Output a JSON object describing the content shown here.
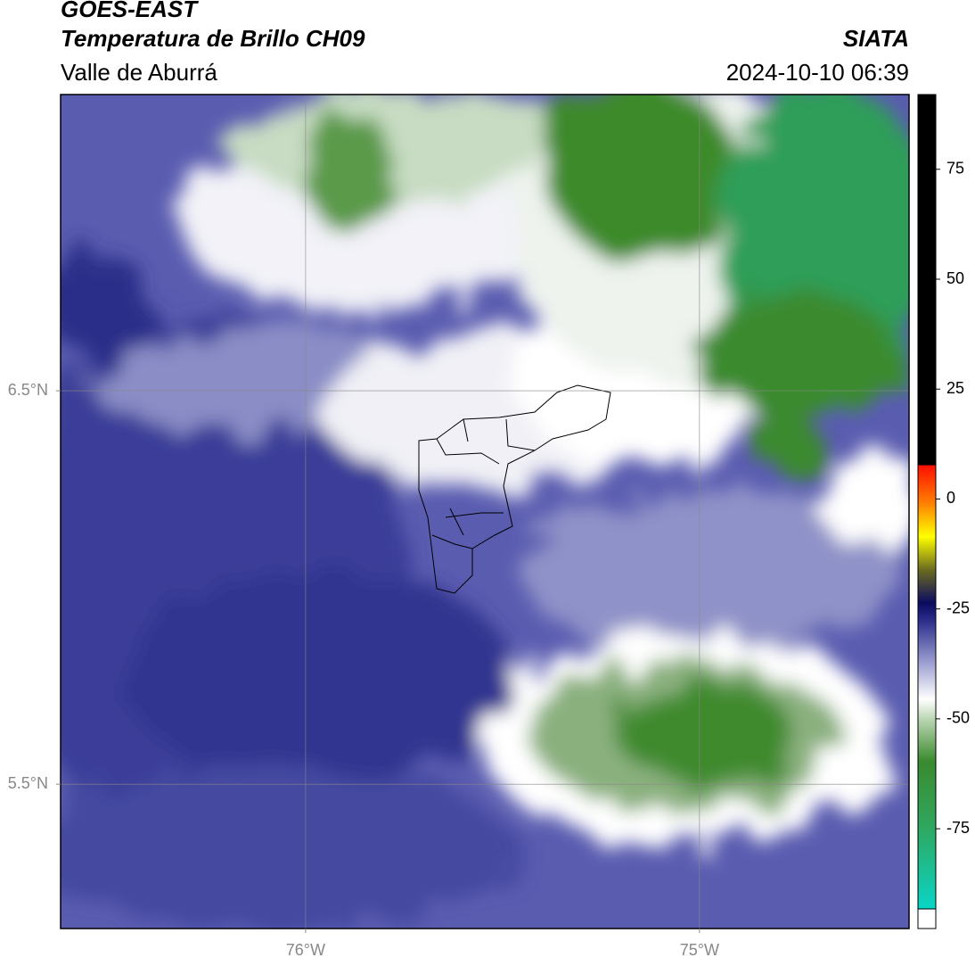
{
  "header": {
    "source": "GOES-EAST",
    "product": "Temperatura de Brillo CH09",
    "region": "Valle de Aburrá",
    "agency": "SIATA",
    "datetime": "2024-10-10 06:39"
  },
  "map": {
    "lonlim": [
      -76.622,
      -74.468
    ],
    "latlim": [
      5.133,
      7.253
    ],
    "lonticks": [
      {
        "value": -76,
        "label": "76°W"
      },
      {
        "value": -75,
        "label": "75°W"
      }
    ],
    "latticks": [
      {
        "value": 6.5,
        "label": "6.5°N"
      },
      {
        "value": 5.5,
        "label": "5.5°N"
      }
    ],
    "grid": true
  },
  "colorbar": {
    "lim": [
      -97.7,
      92
    ],
    "ticks": [
      75,
      50,
      25,
      0,
      -25,
      -50,
      -75
    ]
  }
}
